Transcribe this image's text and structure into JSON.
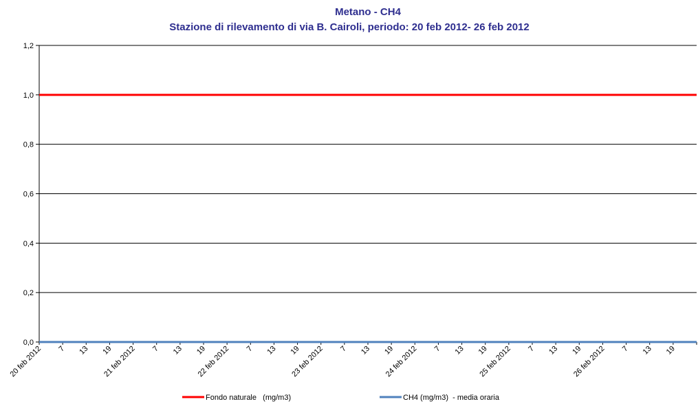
{
  "chart_data": {
    "type": "line",
    "title": "Metano - CH4",
    "subtitle": "Stazione di rilevamento di via B. Cairoli, periodo: 20 feb 2012- 26 feb 2012",
    "categories": [
      "20 feb 2012",
      "7",
      "13",
      "19",
      "21 feb 2012",
      "7",
      "13",
      "19",
      "22 feb 2012",
      "7",
      "13",
      "19",
      "23 feb 2012",
      "7",
      "13",
      "19",
      "24 feb 2012",
      "7",
      "13",
      "19",
      "25 feb 2012",
      "7",
      "13",
      "19",
      "26 feb 2012",
      "7",
      "13",
      "19",
      null
    ],
    "series": [
      {
        "name": "Fondo naturale   (mg/m3)",
        "color": "#ff0000",
        "values": [
          1,
          1,
          1,
          1,
          1,
          1,
          1,
          1,
          1,
          1,
          1,
          1,
          1,
          1,
          1,
          1,
          1,
          1,
          1,
          1,
          1,
          1,
          1,
          1,
          1,
          1,
          1,
          1,
          1
        ]
      },
      {
        "name": "CH4 (mg/m3)  - media oraria",
        "color": "#4f81bd",
        "values": [
          0,
          0,
          0,
          0,
          0,
          0,
          0,
          0,
          0,
          0,
          0,
          0,
          0,
          0,
          0,
          0,
          0,
          0,
          0,
          0,
          0,
          0,
          0,
          0,
          0,
          0,
          0,
          0,
          0
        ]
      }
    ],
    "ylim": [
      0,
      1.2
    ],
    "yticks": [
      {
        "value": 0,
        "label": "0,0"
      },
      {
        "value": 0.2,
        "label": "0,2"
      },
      {
        "value": 0.4,
        "label": "0,4"
      },
      {
        "value": 0.6,
        "label": "0,6"
      },
      {
        "value": 0.8,
        "label": "0,8"
      },
      {
        "value": 1,
        "label": "1,0"
      },
      {
        "value": 1.2,
        "label": "1,2"
      }
    ],
    "grid": true,
    "legend": "bottom"
  }
}
